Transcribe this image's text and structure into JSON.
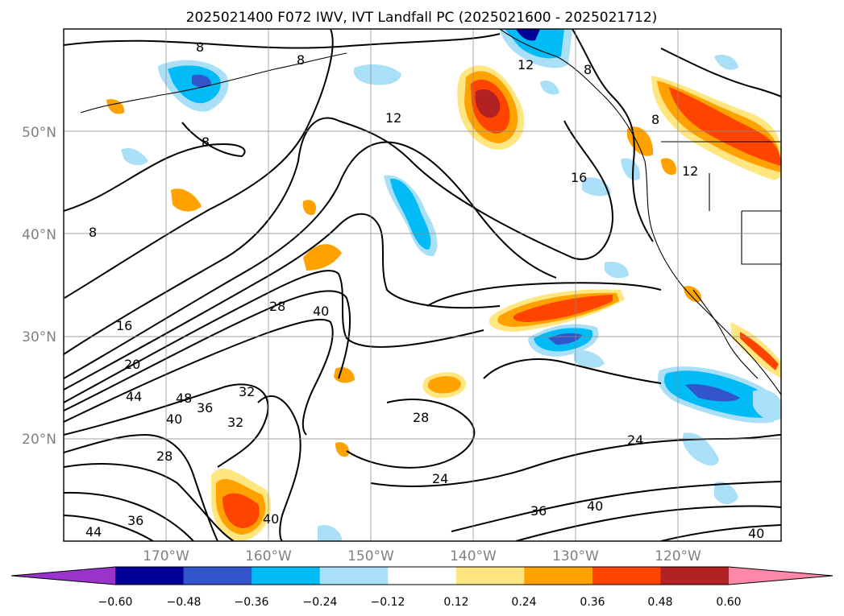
{
  "title": "2025021400 F072 IWV, IVT Landfall PC (2025021600 - 2025021712)",
  "map": {
    "lat_labels": [
      "50°N",
      "40°N",
      "30°N",
      "20°N"
    ],
    "lon_labels": [
      "170°W",
      "160°W",
      "150°W",
      "140°W",
      "130°W",
      "120°W"
    ],
    "lat_range": [
      10,
      60
    ],
    "lon_range": [
      -180,
      -110
    ],
    "gridlines": true,
    "contour_labels": [
      "8",
      "8",
      "8",
      "8",
      "12",
      "12",
      "12",
      "16",
      "16",
      "20",
      "24",
      "24",
      "28",
      "28",
      "28",
      "32",
      "32",
      "36",
      "36",
      "36",
      "40",
      "40",
      "40",
      "40",
      "40",
      "44",
      "44",
      "48",
      "8",
      "8"
    ]
  },
  "colorbar": {
    "ticks": [
      "−0.60",
      "−0.48",
      "−0.36",
      "−0.24",
      "−0.12",
      "0.12",
      "0.24",
      "0.36",
      "0.48",
      "0.60"
    ],
    "colors": [
      "#9933cc",
      "#000099",
      "#3355cc",
      "#00bbf5",
      "#aadff8",
      "#ffffff",
      "#ffe680",
      "#ffa200",
      "#ff4400",
      "#b22222",
      "#ff88aa"
    ]
  }
}
